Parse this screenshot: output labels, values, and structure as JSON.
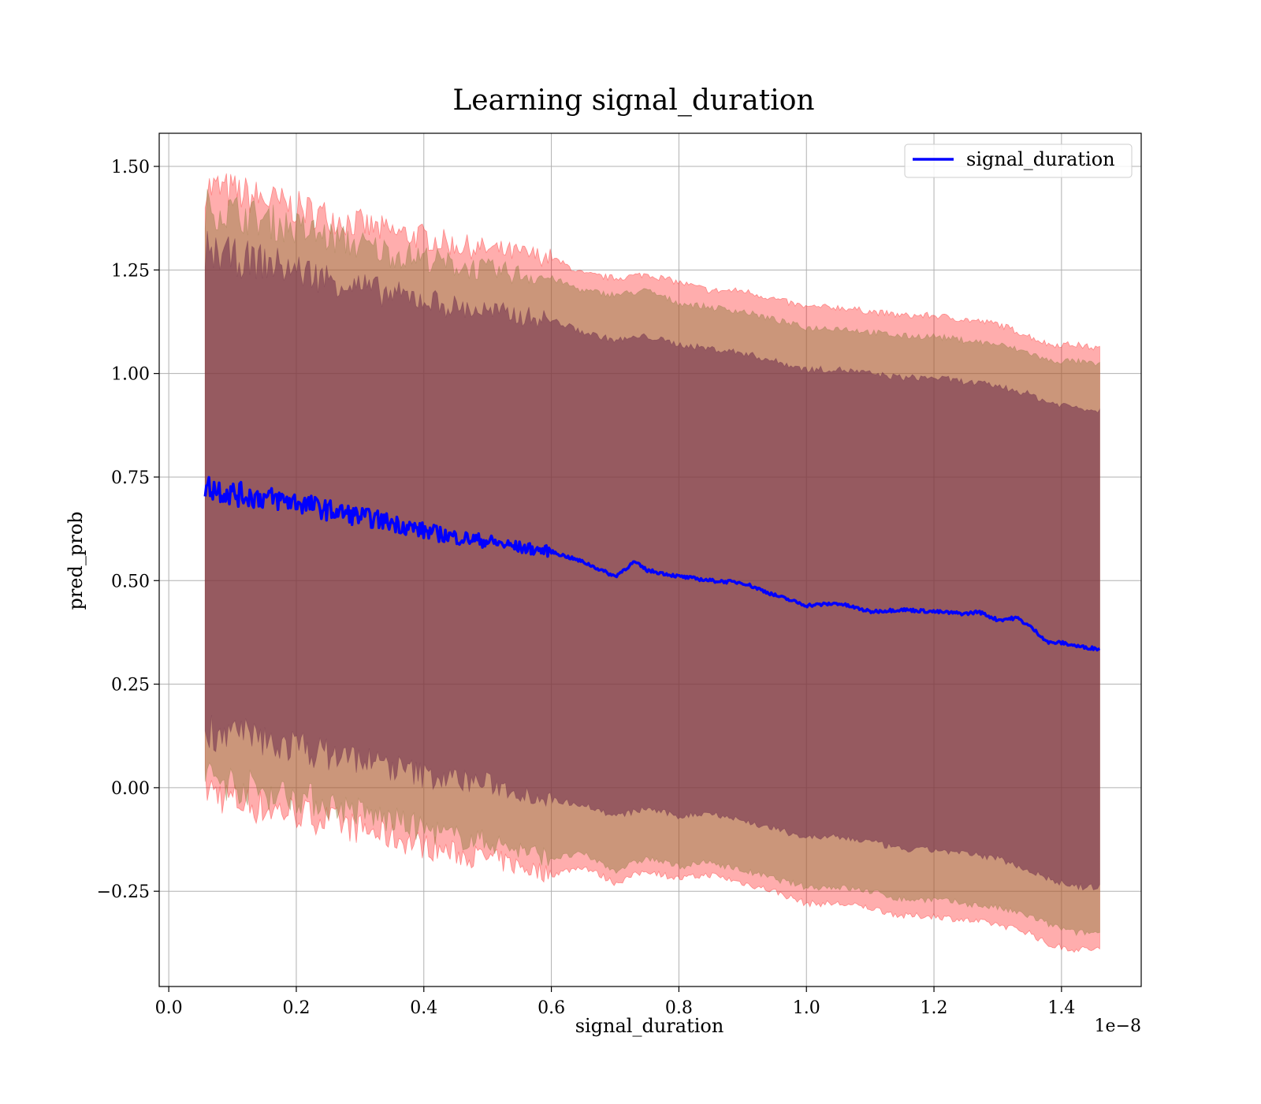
{
  "chart_data": {
    "type": "line",
    "title": "Learning signal_duration",
    "xlabel": "signal_duration",
    "ylabel": "pred_prob",
    "x_offset_label": "1e−8",
    "x_scale": 1e-08,
    "xlim": [
      -0.015,
      1.525
    ],
    "ylim": [
      -0.48,
      1.58
    ],
    "grid": true,
    "legend_position": "top-right",
    "x_ticks": [
      0.0,
      0.2,
      0.4,
      0.6,
      0.8,
      1.0,
      1.2,
      1.4
    ],
    "x_tick_labels": [
      "0.0",
      "0.2",
      "0.4",
      "0.6",
      "0.8",
      "1.0",
      "1.2",
      "1.4"
    ],
    "y_ticks": [
      -0.25,
      0.0,
      0.25,
      0.5,
      0.75,
      1.0,
      1.25,
      1.5
    ],
    "y_tick_labels": [
      "−0.25",
      "0.00",
      "0.25",
      "0.50",
      "0.75",
      "1.00",
      "1.25",
      "1.50"
    ],
    "colors": {
      "line": "#0000ff",
      "outer_band": "#ff0000",
      "middle_band": "#8b7a3c",
      "inner_band": "#6b2a4a"
    },
    "series": [
      {
        "name": "signal_duration",
        "x": [
          0.057,
          0.1,
          0.15,
          0.2,
          0.25,
          0.3,
          0.35,
          0.4,
          0.45,
          0.5,
          0.55,
          0.6,
          0.65,
          0.7,
          0.73,
          0.75,
          0.8,
          0.85,
          0.9,
          0.95,
          1.0,
          1.05,
          1.1,
          1.15,
          1.2,
          1.25,
          1.27,
          1.3,
          1.33,
          1.35,
          1.38,
          1.4,
          1.43,
          1.46
        ],
        "y": [
          0.73,
          0.71,
          0.7,
          0.69,
          0.67,
          0.655,
          0.64,
          0.62,
          0.605,
          0.595,
          0.58,
          0.57,
          0.545,
          0.51,
          0.545,
          0.525,
          0.51,
          0.5,
          0.495,
          0.465,
          0.44,
          0.445,
          0.425,
          0.43,
          0.425,
          0.42,
          0.425,
          0.405,
          0.41,
          0.39,
          0.35,
          0.35,
          0.34,
          0.335
        ]
      }
    ],
    "bands": [
      {
        "level": "outer",
        "x": [
          0.057,
          0.1,
          0.15,
          0.2,
          0.25,
          0.3,
          0.35,
          0.4,
          0.45,
          0.5,
          0.55,
          0.6,
          0.65,
          0.7,
          0.75,
          0.8,
          0.85,
          0.9,
          0.95,
          1.0,
          1.05,
          1.1,
          1.15,
          1.2,
          1.25,
          1.3,
          1.35,
          1.38,
          1.42,
          1.46
        ],
        "upper": [
          1.45,
          1.44,
          1.42,
          1.4,
          1.38,
          1.36,
          1.34,
          1.33,
          1.31,
          1.3,
          1.29,
          1.28,
          1.24,
          1.23,
          1.24,
          1.22,
          1.2,
          1.2,
          1.18,
          1.16,
          1.16,
          1.15,
          1.14,
          1.14,
          1.13,
          1.12,
          1.09,
          1.07,
          1.07,
          1.06
        ],
        "lower": [
          0.0,
          -0.03,
          -0.05,
          -0.06,
          -0.08,
          -0.1,
          -0.12,
          -0.14,
          -0.16,
          -0.17,
          -0.19,
          -0.21,
          -0.19,
          -0.23,
          -0.2,
          -0.22,
          -0.21,
          -0.23,
          -0.25,
          -0.28,
          -0.28,
          -0.29,
          -0.31,
          -0.31,
          -0.32,
          -0.33,
          -0.35,
          -0.38,
          -0.39,
          -0.39
        ]
      },
      {
        "level": "middle",
        "x": [
          0.057,
          0.1,
          0.15,
          0.2,
          0.25,
          0.3,
          0.35,
          0.4,
          0.45,
          0.5,
          0.55,
          0.6,
          0.65,
          0.7,
          0.75,
          0.8,
          0.85,
          0.9,
          0.95,
          1.0,
          1.05,
          1.1,
          1.15,
          1.2,
          1.25,
          1.3,
          1.35,
          1.38,
          1.42,
          1.46
        ],
        "upper": [
          1.4,
          1.39,
          1.37,
          1.35,
          1.33,
          1.31,
          1.29,
          1.28,
          1.26,
          1.25,
          1.24,
          1.23,
          1.2,
          1.19,
          1.2,
          1.17,
          1.16,
          1.15,
          1.13,
          1.11,
          1.11,
          1.1,
          1.09,
          1.09,
          1.08,
          1.07,
          1.05,
          1.03,
          1.03,
          1.02
        ],
        "lower": [
          0.03,
          0.01,
          -0.01,
          -0.02,
          -0.04,
          -0.06,
          -0.08,
          -0.1,
          -0.12,
          -0.13,
          -0.15,
          -0.17,
          -0.16,
          -0.2,
          -0.17,
          -0.19,
          -0.18,
          -0.2,
          -0.22,
          -0.24,
          -0.24,
          -0.25,
          -0.27,
          -0.27,
          -0.28,
          -0.29,
          -0.31,
          -0.33,
          -0.35,
          -0.35
        ]
      },
      {
        "level": "inner",
        "x": [
          0.057,
          0.1,
          0.15,
          0.2,
          0.25,
          0.3,
          0.35,
          0.4,
          0.45,
          0.5,
          0.55,
          0.6,
          0.65,
          0.7,
          0.75,
          0.8,
          0.85,
          0.9,
          0.95,
          1.0,
          1.05,
          1.1,
          1.15,
          1.2,
          1.25,
          1.3,
          1.35,
          1.38,
          1.42,
          1.46
        ],
        "upper": [
          1.3,
          1.28,
          1.27,
          1.25,
          1.23,
          1.21,
          1.19,
          1.18,
          1.16,
          1.15,
          1.14,
          1.13,
          1.1,
          1.08,
          1.09,
          1.07,
          1.06,
          1.05,
          1.03,
          1.01,
          1.01,
          1.0,
          0.99,
          0.99,
          0.98,
          0.97,
          0.95,
          0.93,
          0.92,
          0.91
        ],
        "lower": [
          0.14,
          0.13,
          0.11,
          0.1,
          0.08,
          0.07,
          0.05,
          0.03,
          0.02,
          0.01,
          -0.01,
          -0.03,
          -0.04,
          -0.07,
          -0.05,
          -0.07,
          -0.06,
          -0.08,
          -0.1,
          -0.12,
          -0.12,
          -0.13,
          -0.15,
          -0.15,
          -0.16,
          -0.17,
          -0.2,
          -0.22,
          -0.24,
          -0.24
        ]
      }
    ]
  }
}
